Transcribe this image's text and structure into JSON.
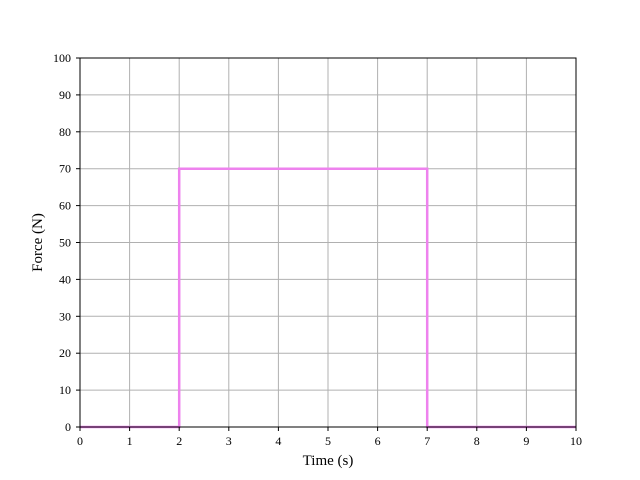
{
  "chart_data": {
    "type": "line",
    "title": "",
    "xlabel": "Time (s)",
    "ylabel": "Force (N)",
    "xlim": [
      0,
      10
    ],
    "ylim": [
      0,
      100
    ],
    "xticks": [
      0,
      1,
      2,
      3,
      4,
      5,
      6,
      7,
      8,
      9,
      10
    ],
    "yticks": [
      0,
      10,
      20,
      30,
      40,
      50,
      60,
      70,
      80,
      90,
      100
    ],
    "grid": true,
    "legend": "none",
    "series": [
      {
        "color": "#ee82ee",
        "x": [
          0,
          2,
          2,
          7,
          7,
          10
        ],
        "y": [
          0,
          0,
          70,
          70,
          0,
          0
        ]
      }
    ]
  }
}
